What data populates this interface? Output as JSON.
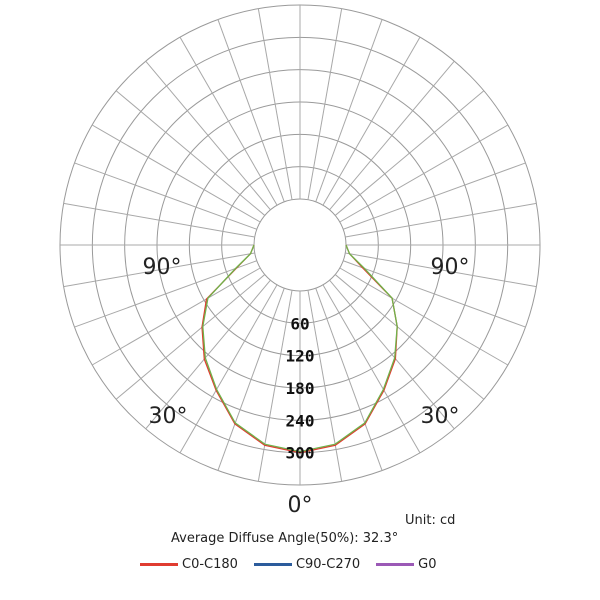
{
  "chart_data": {
    "type": "polar",
    "title": "",
    "unit_label": "Unit: cd",
    "average_angle_label": "Average Diffuse Angle(50%): 32.3°",
    "rmax": 360,
    "ring_ticks": [
      60,
      120,
      180,
      240,
      300
    ],
    "ring_tick_labels": [
      "60",
      "120",
      "180",
      "240",
      "300"
    ],
    "angle_labels": [
      {
        "text": "0°",
        "angle": 0
      },
      {
        "text": "30°",
        "angle": -30
      },
      {
        "text": "30°",
        "angle": 30
      },
      {
        "text": "90°",
        "angle": -90
      },
      {
        "text": "90°",
        "angle": 90
      }
    ],
    "grid": true,
    "legend_position": "bottom",
    "series": [
      {
        "name": "C0-C180",
        "color": "#e03c31",
        "angles": [
          -90,
          -80,
          -70,
          -60,
          -50,
          -40,
          -30,
          -20,
          -10,
          0,
          10,
          20,
          30,
          40,
          50,
          60,
          70,
          80,
          90
        ],
        "values": [
          0,
          8,
          40,
          115,
          152,
          191,
          226,
          268,
          292,
          300,
          292,
          268,
          226,
          190,
          150,
          112,
          38,
          8,
          0
        ]
      },
      {
        "name": "C90-C270",
        "color": "#2c5c9c",
        "angles": [],
        "values": []
      },
      {
        "name": "G0",
        "color": "#9b59b6",
        "angles": [],
        "values": []
      },
      {
        "name": "",
        "color": "#6fb24a",
        "angles": [
          -90,
          -80,
          -70,
          -60,
          -50,
          -40,
          -30,
          -20,
          -10,
          0,
          10,
          20,
          30,
          40,
          50,
          60,
          70,
          80,
          90
        ],
        "values": [
          0,
          8,
          42,
          112,
          150,
          188,
          224,
          266,
          290,
          298,
          290,
          266,
          224,
          188,
          150,
          112,
          42,
          8,
          0
        ]
      }
    ]
  }
}
